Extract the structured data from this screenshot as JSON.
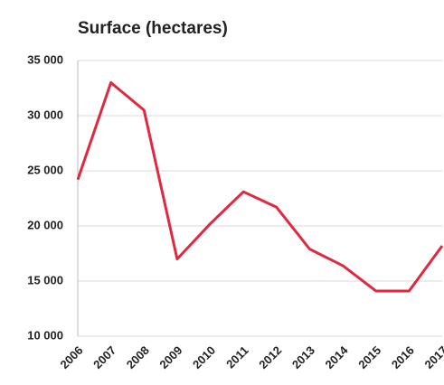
{
  "chart_data": {
    "type": "line",
    "title": "Surface (hectares)",
    "categories": [
      "2006",
      "2007",
      "2008",
      "2009",
      "2010",
      "2011",
      "2012",
      "2013",
      "2014",
      "2015",
      "2016",
      "2017"
    ],
    "series": [
      {
        "name": "Surface",
        "color": "#e0293e",
        "values": [
          24200,
          33000,
          30500,
          17000,
          20200,
          23100,
          21700,
          17900,
          16400,
          14100,
          14100,
          18200
        ]
      }
    ],
    "ylim": [
      10000,
      35000
    ],
    "yticks": [
      {
        "value": 10000,
        "label": "10 000"
      },
      {
        "value": 15000,
        "label": "15 000"
      },
      {
        "value": 20000,
        "label": "20 000"
      },
      {
        "value": 25000,
        "label": "25 000"
      },
      {
        "value": 30000,
        "label": "30 000"
      },
      {
        "value": 35000,
        "label": "35 000"
      }
    ],
    "grid": true
  }
}
